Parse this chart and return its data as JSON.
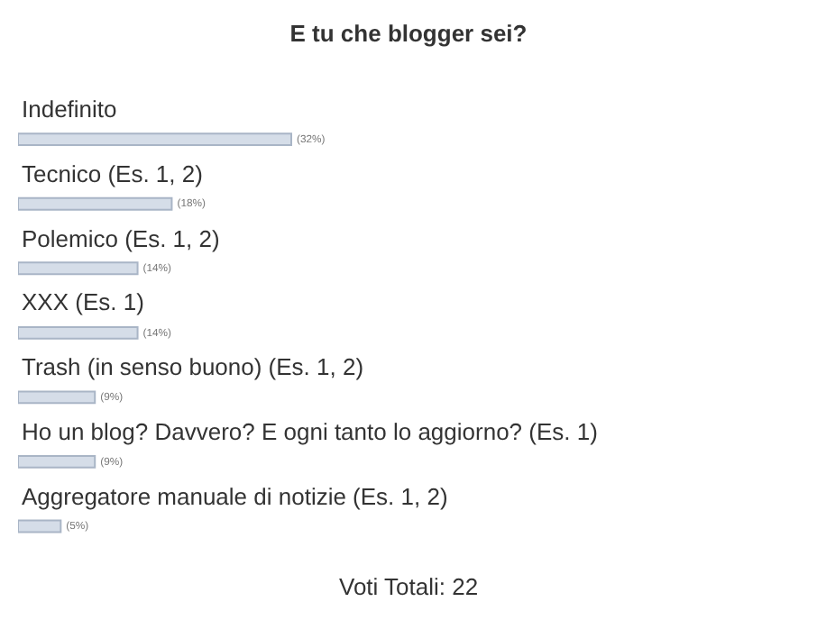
{
  "chart_data": {
    "type": "bar",
    "orientation": "horizontal",
    "title": "E tu che blogger sei?",
    "categories": [
      "Indefinito",
      "Tecnico (Es. 1, 2)",
      "Polemico (Es. 1, 2)",
      "XXX (Es. 1)",
      "Trash (in senso buono) (Es. 1, 2)",
      "Ho un blog? Davvero? E ogni tanto lo aggiorno? (Es. 1)",
      "Aggregatore manuale di notizie (Es. 1, 2)"
    ],
    "values": [
      32,
      18,
      14,
      14,
      9,
      9,
      5
    ],
    "value_labels": [
      "(32%)",
      "(18%)",
      "(14%)",
      "(14%)",
      "(9%)",
      "(9%)",
      "(5%)"
    ],
    "color": "#d5dde8",
    "tick_labels": false,
    "legend": false,
    "annotations": [
      "Voti Totali: 22"
    ]
  }
}
